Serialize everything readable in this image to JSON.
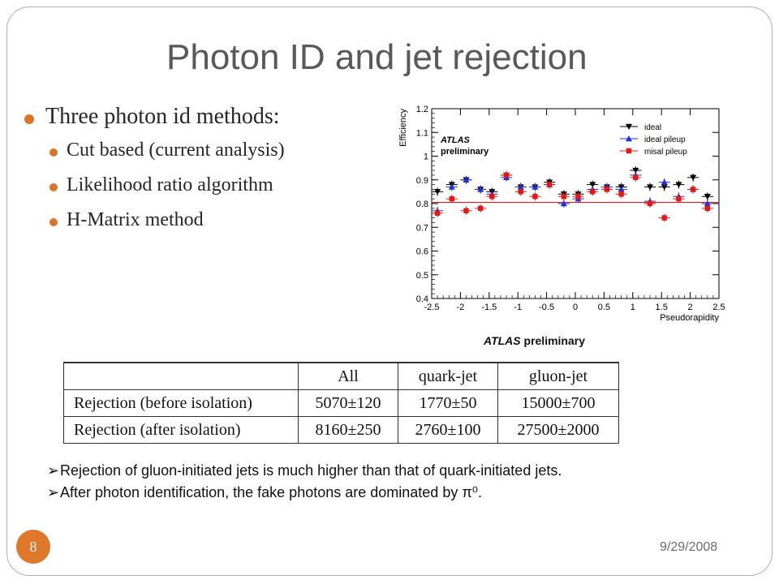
{
  "slide": {
    "title": "Photon ID and jet rejection",
    "bullet_main": "Three photon id methods:",
    "sub_bullets": [
      "Cut based (current analysis)",
      "Likelihood ratio algorithm",
      "H-Matrix method"
    ],
    "atlas_caption_italic": "ATLAS",
    "atlas_caption_rest": " preliminary",
    "slide_number": "8",
    "date": "9/29/2008",
    "accent_color": "#e0782c"
  },
  "table": {
    "headers": [
      "",
      "All",
      "quark-jet",
      "gluon-jet"
    ],
    "rows": [
      [
        "Rejection (before isolation)",
        "5070±120",
        "1770±50",
        "15000±700"
      ],
      [
        "Rejection (after isolation)",
        "8160±250",
        "2760±100",
        "27500±2000"
      ]
    ]
  },
  "notes": [
    {
      "arrow": "➢",
      "text": "Rejection of gluon-initiated jets is much higher than that of quark-initiated jets."
    },
    {
      "arrow": "➢",
      "text": "After photon identification, the fake photons are dominated by π⁰."
    }
  ],
  "chart_data": {
    "type": "scatter",
    "xlabel": "Pseudorapidity",
    "ylabel": "Efficiency",
    "xlim": [
      -2.5,
      2.5
    ],
    "ylim": [
      0.4,
      1.2
    ],
    "xticks": [
      -2.5,
      -2,
      -1.5,
      -1,
      -0.5,
      0,
      0.5,
      1,
      1.5,
      2,
      2.5
    ],
    "xtick_labels": [
      "-2.5",
      "-2",
      "-1.5",
      "-1",
      "-0.5",
      "0",
      "0.5",
      "1",
      "1.5",
      "2",
      "2.5"
    ],
    "yticks": [
      0.4,
      0.5,
      0.6,
      0.7,
      0.8,
      0.9,
      1.0,
      1.1,
      1.2
    ],
    "ytick_labels": [
      "0.4",
      "0.5",
      "0.6",
      "0.7",
      "0.8",
      "0.9",
      "1",
      "1.1",
      "1.2"
    ],
    "annotation_italic": "ATLAS",
    "annotation_text": "preliminary",
    "reference_line": 0.805,
    "legend_position": "top-right",
    "x": [
      -2.4,
      -2.15,
      -1.9,
      -1.65,
      -1.45,
      -1.2,
      -0.95,
      -0.7,
      -0.45,
      -0.2,
      0.05,
      0.3,
      0.55,
      0.8,
      1.05,
      1.3,
      1.55,
      1.8,
      2.05,
      2.3
    ],
    "series": [
      {
        "name": "ideal",
        "color": "#000000",
        "marker": "triangle-down",
        "values": [
          0.85,
          0.88,
          0.9,
          0.86,
          0.85,
          0.92,
          0.87,
          0.87,
          0.89,
          0.84,
          0.84,
          0.88,
          0.87,
          0.87,
          0.94,
          0.87,
          0.87,
          0.88,
          0.91,
          0.83
        ]
      },
      {
        "name": "ideal pileup",
        "color": "#1f2fd0",
        "marker": "triangle-up",
        "values": [
          0.77,
          0.87,
          0.9,
          0.86,
          0.84,
          0.91,
          0.87,
          0.87,
          0.88,
          0.8,
          0.82,
          0.86,
          0.87,
          0.86,
          0.92,
          0.81,
          0.89,
          0.83,
          0.86,
          0.8
        ]
      },
      {
        "name": "misal pileup",
        "color": "#e01818",
        "marker": "square",
        "values": [
          0.76,
          0.82,
          0.77,
          0.78,
          0.83,
          0.92,
          0.85,
          0.83,
          0.88,
          0.83,
          0.83,
          0.85,
          0.86,
          0.84,
          0.91,
          0.8,
          0.74,
          0.82,
          0.86,
          0.78
        ]
      }
    ]
  }
}
